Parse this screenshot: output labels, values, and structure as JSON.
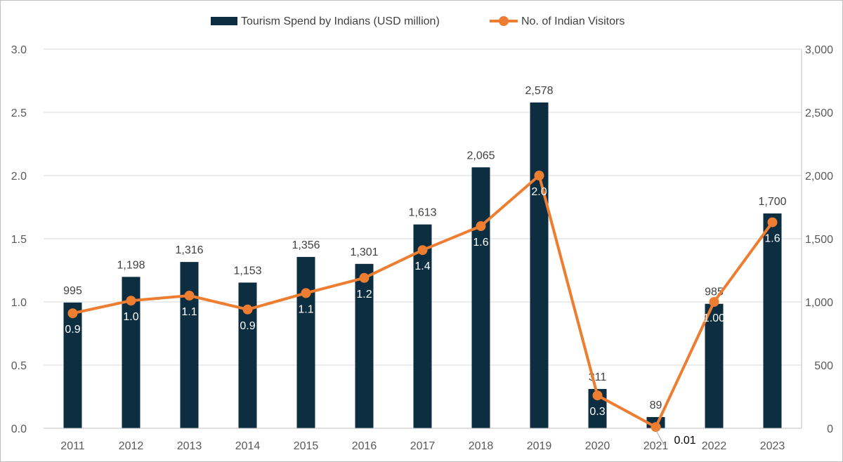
{
  "chart_data": {
    "type": "bar",
    "categories": [
      "2011",
      "2012",
      "2013",
      "2014",
      "2015",
      "2016",
      "2017",
      "2018",
      "2019",
      "2020",
      "2021",
      "2022",
      "2023"
    ],
    "series": [
      {
        "name": "Tourism Spend by Indians (USD million)",
        "kind": "bar",
        "axis": "right",
        "values": [
          995,
          1198,
          1316,
          1153,
          1356,
          1301,
          1613,
          2065,
          2578,
          311,
          89,
          985,
          1700
        ],
        "labels": [
          "995",
          "1,198",
          "1,316",
          "1,153",
          "1,356",
          "1,301",
          "1,613",
          "2,065",
          "2,578",
          "311",
          "89",
          "985",
          "1,700"
        ],
        "color": "#0c2e40"
      },
      {
        "name": "No. of Indian Visitors",
        "kind": "line",
        "axis": "left",
        "values": [
          0.91,
          1.01,
          1.05,
          0.94,
          1.07,
          1.19,
          1.41,
          1.6,
          2.0,
          0.26,
          0.01,
          1.0,
          1.63
        ],
        "labels": [
          "0.9",
          "1.0",
          "1.1",
          "0.9",
          "1.1",
          "1.2",
          "1.4",
          "1.6",
          "2.0",
          "0.3",
          "0.01",
          "1.00",
          "1.6"
        ],
        "color": "#ed7d31"
      }
    ],
    "left_axis": {
      "ylim": [
        0,
        3
      ],
      "ticks": [
        "0.0",
        "0.5",
        "1.0",
        "1.5",
        "2.0",
        "2.5",
        "3.0"
      ]
    },
    "right_axis": {
      "ylim": [
        0,
        3000
      ],
      "ticks": [
        "0",
        "500",
        "1,000",
        "1,500",
        "2,000",
        "2,500",
        "3,000"
      ]
    },
    "title": "",
    "xlabel": "",
    "ylabel": "",
    "grid": true,
    "legend": "top-center"
  }
}
